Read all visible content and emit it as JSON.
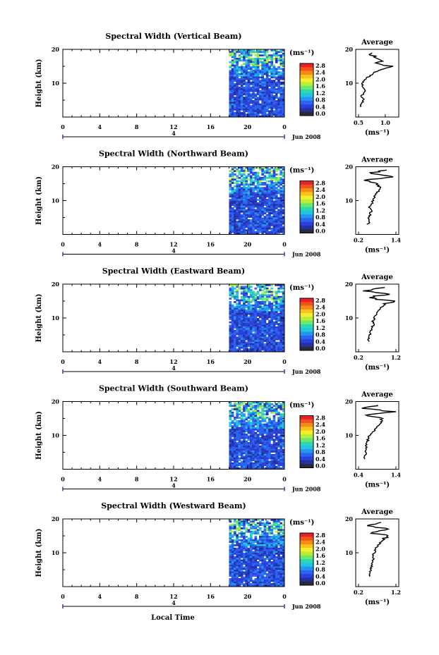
{
  "x_axis_label": "Local Time",
  "date_label": "Jun 2008",
  "unit_label": "(ms⁻¹)",
  "x_ticks": [
    "0",
    "4",
    "8",
    "12",
    "16",
    "20",
    "0"
  ],
  "date_tick": "4",
  "height_label": "Height (km)",
  "height_ticks": [
    "20",
    "10"
  ],
  "avg_title": "Average",
  "colorbar": {
    "labels": [
      "2.8",
      "2.4",
      "2.0",
      "1.6",
      "1.2",
      "0.8",
      "0.4",
      "0.0"
    ],
    "colors": [
      "#e8202a",
      "#f0541c",
      "#f58a14",
      "#f7c21c",
      "#f2ee2c",
      "#b8ee3a",
      "#6ee86a",
      "#2ed8b0",
      "#22c4e2",
      "#2596ee",
      "#2b64f0",
      "#2c40d8",
      "#23329e",
      "#2a2a3a"
    ]
  },
  "panels": [
    {
      "title": "Spectral Width (Vertical Beam)",
      "avg_ticks": [
        "0.5",
        "1.0"
      ],
      "avg_unit": "(ms⁻¹)"
    },
    {
      "title": "Spectral Width (Northward Beam)",
      "avg_ticks": [
        "0.2",
        "1.4"
      ],
      "avg_unit": "(ms⁻¹)"
    },
    {
      "title": "Spectral Width (Eastward Beam)",
      "avg_ticks": [
        "0.2",
        "1.2"
      ],
      "avg_unit": "(ms⁻¹)"
    },
    {
      "title": "Spectral Width (Southward Beam)",
      "avg_ticks": [
        "0.4",
        "1.4"
      ],
      "avg_unit": "(ms⁻¹)"
    },
    {
      "title": "Spectral Width (Westward Beam)",
      "avg_ticks": [
        "0.2",
        "1.2"
      ],
      "avg_unit": "(ms⁻¹)"
    }
  ],
  "chart_data": {
    "type": "heatmap",
    "x_ticks_hours": [
      0,
      4,
      8,
      12,
      16,
      20,
      24
    ],
    "x_range_hours": [
      0,
      24
    ],
    "data_start_hour": 18,
    "y_range_km": [
      0,
      20
    ],
    "colorbar_range": [
      0.0,
      2.8
    ],
    "beams": [
      {
        "beam": "Vertical",
        "avg_range": [
          0.5,
          1.2
        ],
        "avg_profile": [
          [
            3,
            0.52
          ],
          [
            4,
            0.56
          ],
          [
            5,
            0.6
          ],
          [
            6,
            0.55
          ],
          [
            7,
            0.6
          ],
          [
            8,
            0.62
          ],
          [
            9,
            0.58
          ],
          [
            10,
            0.56
          ],
          [
            11,
            0.6
          ],
          [
            12,
            0.7
          ],
          [
            13,
            0.78
          ],
          [
            14,
            0.9
          ],
          [
            15,
            1.1
          ],
          [
            16,
            0.85
          ],
          [
            17,
            0.95
          ],
          [
            18,
            0.8
          ],
          [
            19,
            0.75
          ]
        ]
      },
      {
        "beam": "Northward",
        "avg_range": [
          0.2,
          1.4
        ],
        "avg_profile": [
          [
            3,
            0.5
          ],
          [
            4,
            0.55
          ],
          [
            5,
            0.52
          ],
          [
            6,
            0.58
          ],
          [
            7,
            0.6
          ],
          [
            8,
            0.56
          ],
          [
            9,
            0.62
          ],
          [
            10,
            0.65
          ],
          [
            11,
            0.7
          ],
          [
            12,
            0.75
          ],
          [
            13,
            0.85
          ],
          [
            14,
            0.9
          ],
          [
            15,
            0.8
          ],
          [
            16,
            0.3
          ],
          [
            17,
            1.3
          ],
          [
            18,
            0.5
          ],
          [
            19,
            1.1
          ]
        ]
      },
      {
        "beam": "Eastward",
        "avg_range": [
          0.2,
          1.2
        ],
        "avg_profile": [
          [
            3,
            0.45
          ],
          [
            4,
            0.48
          ],
          [
            5,
            0.5
          ],
          [
            6,
            0.52
          ],
          [
            7,
            0.55
          ],
          [
            8,
            0.6
          ],
          [
            9,
            0.58
          ],
          [
            10,
            0.62
          ],
          [
            11,
            0.68
          ],
          [
            12,
            0.72
          ],
          [
            13,
            0.8
          ],
          [
            14,
            0.9
          ],
          [
            15,
            1.1
          ],
          [
            16,
            0.4
          ],
          [
            17,
            1.0
          ],
          [
            18,
            0.3
          ],
          [
            19,
            0.9
          ]
        ]
      },
      {
        "beam": "Southward",
        "avg_range": [
          0.4,
          1.4
        ],
        "avg_profile": [
          [
            3,
            0.55
          ],
          [
            4,
            0.58
          ],
          [
            5,
            0.6
          ],
          [
            6,
            0.62
          ],
          [
            7,
            0.6
          ],
          [
            8,
            0.64
          ],
          [
            9,
            0.66
          ],
          [
            10,
            0.7
          ],
          [
            11,
            0.78
          ],
          [
            12,
            0.86
          ],
          [
            13,
            0.95
          ],
          [
            14,
            1.0
          ],
          [
            15,
            1.05
          ],
          [
            16,
            0.6
          ],
          [
            17,
            1.3
          ],
          [
            18,
            0.5
          ],
          [
            19,
            0.9
          ]
        ]
      },
      {
        "beam": "Westward",
        "avg_range": [
          0.2,
          1.2
        ],
        "avg_profile": [
          [
            3,
            0.48
          ],
          [
            4,
            0.5
          ],
          [
            5,
            0.52
          ],
          [
            6,
            0.55
          ],
          [
            7,
            0.57
          ],
          [
            8,
            0.6
          ],
          [
            9,
            0.58
          ],
          [
            10,
            0.62
          ],
          [
            11,
            0.66
          ],
          [
            12,
            0.7
          ],
          [
            13,
            0.78
          ],
          [
            14,
            0.9
          ],
          [
            15,
            1.05
          ],
          [
            16,
            0.5
          ],
          [
            17,
            1.1
          ],
          [
            18,
            0.4
          ],
          [
            19,
            0.8
          ]
        ]
      }
    ]
  }
}
